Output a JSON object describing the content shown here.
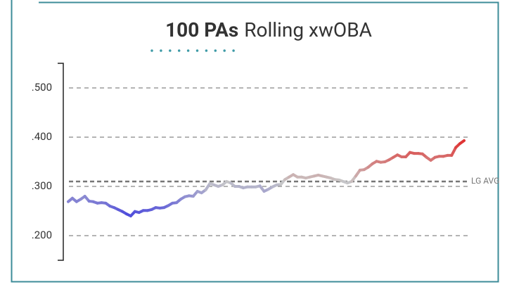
{
  "chart_data": {
    "type": "line",
    "title_bold": "100 PAs",
    "title": "Rolling xwOBA",
    "values": [
      0.269,
      0.276,
      0.269,
      0.274,
      0.28,
      0.27,
      0.269,
      0.266,
      0.267,
      0.266,
      0.26,
      0.257,
      0.253,
      0.249,
      0.244,
      0.24,
      0.249,
      0.247,
      0.251,
      0.251,
      0.253,
      0.257,
      0.256,
      0.257,
      0.261,
      0.266,
      0.267,
      0.274,
      0.279,
      0.281,
      0.28,
      0.29,
      0.287,
      0.293,
      0.306,
      0.303,
      0.3,
      0.303,
      0.31,
      0.307,
      0.3,
      0.3,
      0.297,
      0.299,
      0.299,
      0.299,
      0.301,
      0.29,
      0.294,
      0.299,
      0.303,
      0.304,
      0.314,
      0.319,
      0.324,
      0.319,
      0.319,
      0.317,
      0.319,
      0.321,
      0.323,
      0.321,
      0.319,
      0.317,
      0.314,
      0.313,
      0.31,
      0.307,
      0.31,
      0.321,
      0.333,
      0.334,
      0.339,
      0.346,
      0.351,
      0.349,
      0.35,
      0.354,
      0.359,
      0.364,
      0.36,
      0.36,
      0.369,
      0.367,
      0.367,
      0.366,
      0.359,
      0.353,
      0.359,
      0.361,
      0.361,
      0.363,
      0.363,
      0.379,
      0.387,
      0.393
    ],
    "ylim": [
      0.15,
      0.55
    ],
    "yticks": [
      {
        "value": 0.2,
        "label": ".200"
      },
      {
        "value": 0.3,
        "label": ".300"
      },
      {
        "value": 0.4,
        "label": ".400"
      },
      {
        "value": 0.5,
        "label": ".500"
      }
    ],
    "grid": true,
    "reference_line": {
      "value": 0.31,
      "label": "LG AVG"
    },
    "color_low": "#4a48dc",
    "color_mid": "#c8c8c8",
    "color_high": "#e0302f"
  }
}
